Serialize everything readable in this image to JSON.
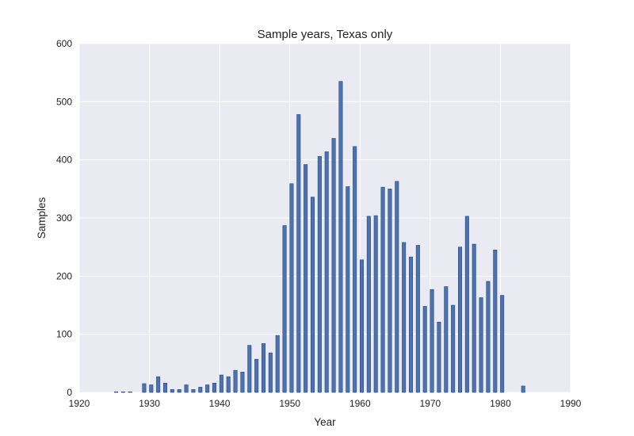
{
  "chart_data": {
    "type": "bar",
    "title": "Sample years, Texas only",
    "xlabel": "Year",
    "ylabel": "Samples",
    "xlim": [
      1920,
      1990
    ],
    "ylim": [
      0,
      600
    ],
    "xticks": [
      "1920",
      "1930",
      "1940",
      "1950",
      "1960",
      "1970",
      "1980",
      "1990"
    ],
    "yticks": [
      "0",
      "100",
      "200",
      "300",
      "400",
      "500",
      "600"
    ],
    "grid": true,
    "bar_width_years": 0.5,
    "colors": {
      "bar": "#4c72b0",
      "bar_edge": "#2b4a7a",
      "plot_bg": "#eaeaf2",
      "grid": "#ffffff"
    },
    "x": [
      1925,
      1926,
      1927,
      1929,
      1930,
      1931,
      1932,
      1933,
      1934,
      1935,
      1936,
      1937,
      1938,
      1939,
      1940,
      1941,
      1942,
      1943,
      1944,
      1945,
      1946,
      1947,
      1948,
      1949,
      1950,
      1951,
      1952,
      1953,
      1954,
      1955,
      1956,
      1957,
      1958,
      1959,
      1960,
      1961,
      1962,
      1963,
      1964,
      1965,
      1966,
      1967,
      1968,
      1969,
      1970,
      1971,
      1972,
      1973,
      1974,
      1975,
      1976,
      1977,
      1978,
      1979,
      1980,
      1983
    ],
    "values": [
      1,
      1,
      1,
      15,
      13,
      27,
      16,
      5,
      5,
      13,
      5,
      9,
      13,
      16,
      30,
      27,
      38,
      35,
      81,
      57,
      84,
      68,
      98,
      287,
      359,
      478,
      392,
      336,
      406,
      414,
      437,
      535,
      354,
      423,
      228,
      303,
      304,
      353,
      350,
      363,
      258,
      233,
      253,
      148,
      177,
      121,
      182,
      150,
      250,
      303,
      255,
      163,
      191,
      245,
      167,
      11
    ]
  }
}
